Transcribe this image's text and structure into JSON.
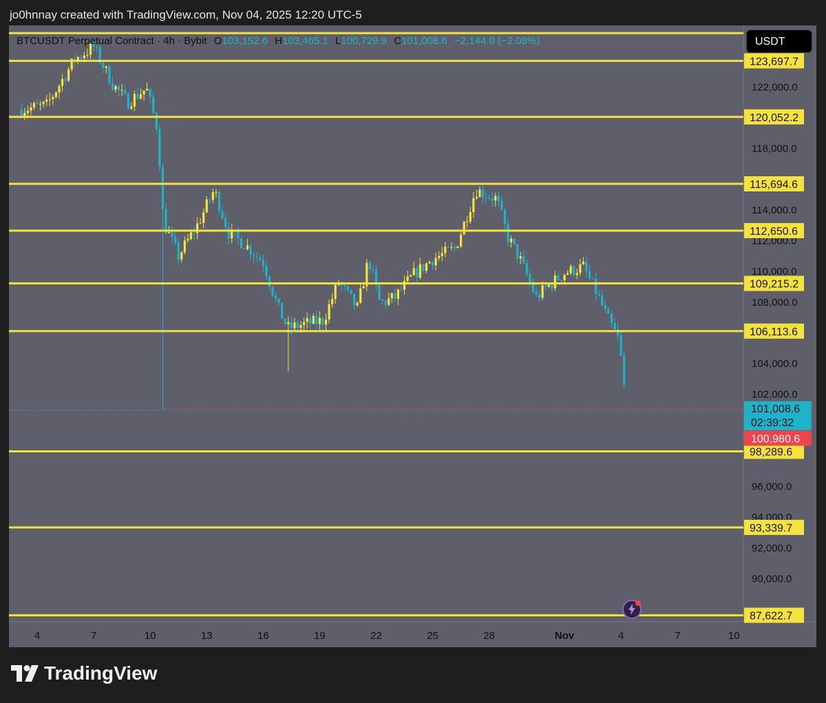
{
  "caption": "jo0hnnay created with TradingView.com, Nov 04, 2025 12:20 UTC-5",
  "header": {
    "symbol": "BTCUSDT Perpetual Contract · 4h · Bybit",
    "o_label": "O",
    "o_value": "103,152.6",
    "h_label": "H",
    "h_value": "103,465.1",
    "l_label": "L",
    "l_value": "100,729.9",
    "c_label": "C",
    "c_value": "101,008.6",
    "change": "−2,144.0 (−2.08%)"
  },
  "quote_currency": "USDT",
  "brand": "TradingView",
  "chart_data": {
    "type": "candlestick",
    "ylim": [
      87200,
      126000
    ],
    "y_ticks": [
      "122,000.0",
      "118,000.0",
      "114,000.0",
      "112,000.0",
      "110,000.0",
      "108,000.0",
      "104,000.0",
      "102,000.0",
      "96,000.0",
      "94,000.0",
      "92,000.0",
      "90,000.0"
    ],
    "y_tick_values": [
      122000,
      118000,
      114000,
      112000,
      110000,
      108000,
      104000,
      102000,
      96000,
      94000,
      92000,
      90000
    ],
    "x_ticks": [
      "4",
      "7",
      "10",
      "13",
      "16",
      "19",
      "22",
      "25",
      "28",
      "Nov",
      "4",
      "7",
      "10"
    ],
    "x_tick_days": [
      4,
      7,
      10,
      13,
      16,
      19,
      22,
      25,
      28,
      32,
      35,
      38,
      41
    ],
    "x_range_days": [
      2.5,
      41.5
    ],
    "levels": [
      {
        "value": 125500,
        "label": ""
      },
      {
        "value": 123697.7,
        "label": "123,697.7"
      },
      {
        "value": 120052.2,
        "label": "120,052.2"
      },
      {
        "value": 115694.6,
        "label": "115,694.6"
      },
      {
        "value": 112650.6,
        "label": "112,650.6"
      },
      {
        "value": 109215.2,
        "label": "109,215.2"
      },
      {
        "value": 106113.6,
        "label": "106,113.6"
      },
      {
        "value": 98289.6,
        "label": "98,289.6"
      },
      {
        "value": 93339.7,
        "label": "93,339.7"
      },
      {
        "value": 87622.7,
        "label": "87,622.7"
      }
    ],
    "level_color": "#f5e33b",
    "last_price": {
      "value": 101008.6,
      "label": "101,008.6",
      "countdown": "02:39:32",
      "color": "#1fb3c9"
    },
    "low_mark": {
      "value": 100980.6,
      "label": "100,980.6",
      "color": "#f0444c"
    },
    "up_color": "#f5e33b",
    "down_color": "#1fb3c9",
    "closes": [
      [
        3.0,
        120500
      ],
      [
        4.5,
        120800
      ],
      [
        6.0,
        123800
      ],
      [
        7.0,
        124600
      ],
      [
        8.0,
        122200
      ],
      [
        8.8,
        121000
      ],
      [
        9.8,
        121900
      ],
      [
        10.4,
        119200
      ],
      [
        10.7,
        113200
      ],
      [
        11.5,
        111000
      ],
      [
        12.5,
        113000
      ],
      [
        13.4,
        115300
      ],
      [
        14.2,
        112400
      ],
      [
        15.0,
        111800
      ],
      [
        16.0,
        110600
      ],
      [
        16.8,
        107600
      ],
      [
        17.3,
        106300
      ],
      [
        18.3,
        106600
      ],
      [
        19.2,
        106800
      ],
      [
        20.0,
        109300
      ],
      [
        21.0,
        107600
      ],
      [
        21.6,
        110800
      ],
      [
        22.2,
        107900
      ],
      [
        23.0,
        108300
      ],
      [
        24.0,
        109800
      ],
      [
        25.0,
        110800
      ],
      [
        26.2,
        111500
      ],
      [
        27.3,
        115300
      ],
      [
        28.4,
        114700
      ],
      [
        29.0,
        112200
      ],
      [
        29.6,
        110900
      ],
      [
        30.5,
        108300
      ],
      [
        31.0,
        108900
      ],
      [
        32.0,
        109900
      ],
      [
        33.0,
        110300
      ],
      [
        33.7,
        108600
      ],
      [
        34.3,
        106900
      ],
      [
        34.9,
        105500
      ],
      [
        35.3,
        101008.6
      ]
    ]
  }
}
